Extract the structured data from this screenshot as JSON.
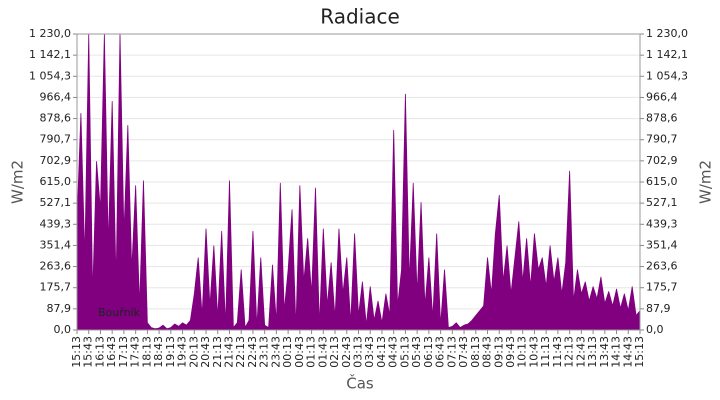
{
  "chart_data": {
    "type": "area",
    "title": "Radiace",
    "x_label": "Čas",
    "y_label": "W/m2",
    "y2_label": "W/m2",
    "categories": [
      "15:13",
      null,
      null,
      "15:43",
      null,
      null,
      "16:13",
      null,
      null,
      "16:43",
      null,
      null,
      "17:13",
      null,
      null,
      "17:43",
      null,
      null,
      "18:13",
      null,
      null,
      "18:43",
      null,
      null,
      "19:13",
      null,
      null,
      "19:43",
      null,
      null,
      "20:13",
      null,
      null,
      "20:43",
      null,
      null,
      "21:13",
      null,
      null,
      "21:43",
      null,
      null,
      "22:13",
      null,
      null,
      "22:43",
      null,
      null,
      "23:13",
      null,
      null,
      "23:43",
      null,
      null,
      "00:13",
      null,
      null,
      "00:43",
      null,
      null,
      "01:13",
      null,
      null,
      "01:43",
      null,
      null,
      "02:13",
      null,
      null,
      "02:43",
      null,
      null,
      "03:13",
      null,
      null,
      "03:43",
      null,
      null,
      "04:13",
      null,
      null,
      "04:43",
      null,
      null,
      "05:13",
      null,
      null,
      "05:43",
      null,
      null,
      "06:13",
      null,
      null,
      "06:43",
      null,
      null,
      "07:13",
      null,
      null,
      "07:43",
      null,
      null,
      "08:13",
      null,
      null,
      "08:43",
      null,
      null,
      "09:13",
      null,
      null,
      "09:43",
      null,
      null,
      "10:13",
      null,
      null,
      "10:43",
      null,
      null,
      "11:13",
      null,
      null,
      "11:43",
      null,
      null,
      "12:13",
      null,
      null,
      "12:43",
      null,
      null,
      "13:13",
      null,
      null,
      "13:43",
      null,
      null,
      "14:13",
      null,
      null,
      "14:43",
      null,
      null,
      "15:13"
    ],
    "series": [
      {
        "name": "Bouřník",
        "color": "#800080",
        "values": [
          450,
          900,
          300,
          1230,
          150,
          700,
          500,
          1230,
          350,
          950,
          200,
          1230,
          400,
          850,
          250,
          600,
          100,
          620,
          30,
          10,
          5,
          8,
          20,
          5,
          10,
          25,
          15,
          30,
          20,
          40,
          150,
          300,
          60,
          420,
          100,
          350,
          50,
          410,
          20,
          620,
          10,
          30,
          250,
          10,
          40,
          410,
          15,
          300,
          20,
          10,
          270,
          30,
          610,
          80,
          250,
          500,
          10,
          600,
          200,
          380,
          150,
          590,
          20,
          420,
          100,
          280,
          50,
          420,
          150,
          300,
          30,
          400,
          60,
          200,
          20,
          180,
          40,
          120,
          30,
          150,
          60,
          830,
          100,
          250,
          980,
          200,
          610,
          150,
          530,
          100,
          300,
          50,
          400,
          20,
          250,
          10,
          15,
          30,
          10,
          20,
          25,
          40,
          60,
          80,
          100,
          300,
          150,
          400,
          560,
          200,
          350,
          150,
          300,
          450,
          200,
          380,
          180,
          400,
          250,
          300,
          180,
          350,
          200,
          300,
          150,
          280,
          660,
          120,
          250,
          150,
          200,
          120,
          180,
          130,
          220,
          110,
          160,
          100,
          170,
          90,
          150,
          80,
          180,
          60,
          80
        ]
      }
    ],
    "ylim": [
      0,
      1230
    ],
    "yticks": [
      {
        "value": 0,
        "label": "0,0"
      },
      {
        "value": 87.9,
        "label": "87,9"
      },
      {
        "value": 175.7,
        "label": "175,7"
      },
      {
        "value": 263.6,
        "label": "263,6"
      },
      {
        "value": 351.4,
        "label": "351,4"
      },
      {
        "value": 439.3,
        "label": "439,3"
      },
      {
        "value": 527.1,
        "label": "527,1"
      },
      {
        "value": 615,
        "label": "615,0"
      },
      {
        "value": 702.9,
        "label": "702,9"
      },
      {
        "value": 790.7,
        "label": "790,7"
      },
      {
        "value": 878.6,
        "label": "878,6"
      },
      {
        "value": 966.4,
        "label": "966,4"
      },
      {
        "value": 1054.3,
        "label": "1 054,3"
      },
      {
        "value": 1142.1,
        "label": "1 142,1"
      },
      {
        "value": 1230,
        "label": "1 230,0"
      }
    ],
    "y2lim": [
      0,
      1230
    ],
    "y2ticks": [
      {
        "value": 0,
        "label": "0,0"
      },
      {
        "value": 87.9,
        "label": "87,9"
      },
      {
        "value": 175.7,
        "label": "175,7"
      },
      {
        "value": 263.6,
        "label": "263,6"
      },
      {
        "value": 351.4,
        "label": "351,4"
      },
      {
        "value": 439.3,
        "label": "439,3"
      },
      {
        "value": 527.1,
        "label": "527,1"
      },
      {
        "value": 615,
        "label": "615,0"
      },
      {
        "value": 702.9,
        "label": "702,9"
      },
      {
        "value": 790.7,
        "label": "790,7"
      },
      {
        "value": 878.6,
        "label": "878,6"
      },
      {
        "value": 966.4,
        "label": "966,4"
      },
      {
        "value": 1054.3,
        "label": "1 054,3"
      },
      {
        "value": 1142.1,
        "label": "1 142,1"
      },
      {
        "value": 1230,
        "label": "1 230,0"
      }
    ],
    "grid": true,
    "legend": "lower left"
  }
}
